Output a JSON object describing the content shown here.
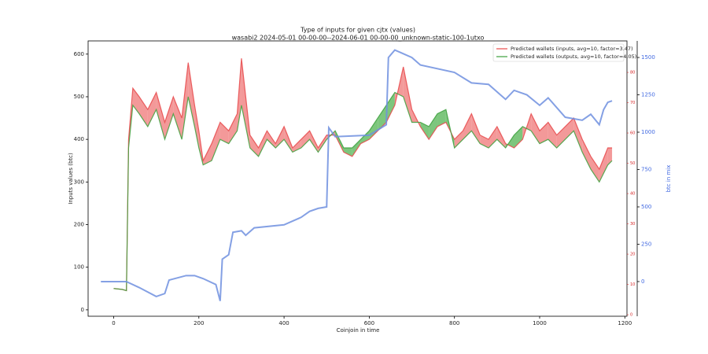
{
  "chart_data": {
    "type": "line",
    "title": "Type of inputs for given cjtx (values)",
    "subtitle": "wasabi2 2024-05-01 00-00-00--2024-06-01 00-00-00_unknown-static-100-1utxo",
    "x_label": "Coinjoin in time",
    "y_label": "Inputs values (btc)",
    "y2_label": "btc in mix",
    "xlim": [
      -60,
      1205
    ],
    "xticks": [
      0,
      200,
      400,
      600,
      800,
      1000,
      1200
    ],
    "ylim": [
      -15,
      631
    ],
    "yticks": [
      0,
      100,
      200,
      300,
      400,
      500,
      600
    ],
    "y2lim": [
      -232,
      1611
    ],
    "y2ticks": [
      0,
      250,
      500,
      750,
      1000,
      1250,
      1500
    ],
    "y2color": "#4169e1",
    "y3lim": [
      -0.5,
      90.4
    ],
    "y3ticks": [
      0,
      10,
      20,
      30,
      40,
      50,
      60,
      70,
      80
    ],
    "y3color": "#d62728",
    "legend": "upper right",
    "fill_between": {
      "above_color": "#f08080",
      "below_color": "#5cb85c"
    },
    "series": [
      {
        "name": "Predicted wallets (inputs, avg=10, factor=3.47)",
        "color": "#e8484a",
        "x": [
          0,
          20,
          30,
          35,
          45,
          60,
          80,
          100,
          120,
          140,
          160,
          175,
          190,
          200,
          210,
          230,
          250,
          270,
          290,
          300,
          320,
          340,
          360,
          380,
          400,
          420,
          440,
          460,
          480,
          500,
          520,
          540,
          560,
          580,
          600,
          620,
          640,
          660,
          680,
          700,
          720,
          740,
          760,
          780,
          800,
          820,
          840,
          860,
          880,
          900,
          920,
          940,
          960,
          980,
          1000,
          1020,
          1040,
          1060,
          1080,
          1100,
          1120,
          1140,
          1160,
          1170
        ],
        "values": [
          50,
          48,
          45,
          400,
          520,
          500,
          470,
          510,
          440,
          500,
          450,
          580,
          480,
          420,
          350,
          390,
          440,
          420,
          460,
          590,
          410,
          380,
          420,
          390,
          430,
          380,
          400,
          420,
          380,
          410,
          410,
          370,
          360,
          390,
          400,
          420,
          440,
          480,
          570,
          470,
          430,
          400,
          430,
          440,
          400,
          420,
          460,
          410,
          400,
          430,
          390,
          380,
          400,
          460,
          420,
          440,
          410,
          430,
          450,
          400,
          360,
          330,
          380,
          380
        ]
      },
      {
        "name": "Predicted wallets (outputs, avg=10, factor=4.05)",
        "color": "#3ca03c",
        "x": [
          0,
          20,
          30,
          35,
          45,
          60,
          80,
          100,
          120,
          140,
          160,
          175,
          190,
          200,
          210,
          230,
          250,
          270,
          290,
          300,
          320,
          340,
          360,
          380,
          400,
          420,
          440,
          460,
          480,
          500,
          520,
          540,
          560,
          580,
          600,
          620,
          640,
          660,
          680,
          700,
          720,
          740,
          760,
          780,
          800,
          820,
          840,
          860,
          880,
          900,
          920,
          940,
          960,
          980,
          1000,
          1020,
          1040,
          1060,
          1080,
          1100,
          1120,
          1140,
          1160,
          1170
        ],
        "values": [
          50,
          48,
          45,
          380,
          480,
          460,
          430,
          470,
          400,
          460,
          400,
          500,
          430,
          380,
          340,
          350,
          400,
          390,
          420,
          480,
          380,
          360,
          400,
          380,
          400,
          370,
          380,
          400,
          370,
          400,
          420,
          380,
          380,
          400,
          420,
          450,
          480,
          510,
          500,
          440,
          440,
          430,
          460,
          470,
          380,
          400,
          420,
          390,
          380,
          400,
          380,
          410,
          430,
          420,
          390,
          400,
          380,
          400,
          420,
          370,
          330,
          300,
          340,
          350
        ]
      },
      {
        "name": "btc in mix",
        "color": "#6f8fdf",
        "axis": "y2",
        "x": [
          -30,
          30,
          60,
          100,
          120,
          130,
          170,
          190,
          210,
          240,
          250,
          255,
          270,
          280,
          300,
          310,
          330,
          400,
          440,
          460,
          480,
          500,
          505,
          520,
          600,
          640,
          645,
          660,
          700,
          720,
          800,
          840,
          880,
          900,
          920,
          940,
          970,
          1000,
          1020,
          1060,
          1100,
          1120,
          1140,
          1150,
          1160,
          1170
        ],
        "values": [
          0,
          0,
          -40,
          -100,
          -80,
          10,
          40,
          40,
          20,
          -20,
          -130,
          150,
          180,
          330,
          340,
          310,
          360,
          380,
          430,
          470,
          490,
          500,
          1030,
          970,
          980,
          1050,
          1500,
          1550,
          1500,
          1450,
          1400,
          1330,
          1320,
          1270,
          1220,
          1280,
          1250,
          1180,
          1230,
          1100,
          1080,
          1120,
          1050,
          1150,
          1200,
          1210
        ]
      }
    ]
  }
}
